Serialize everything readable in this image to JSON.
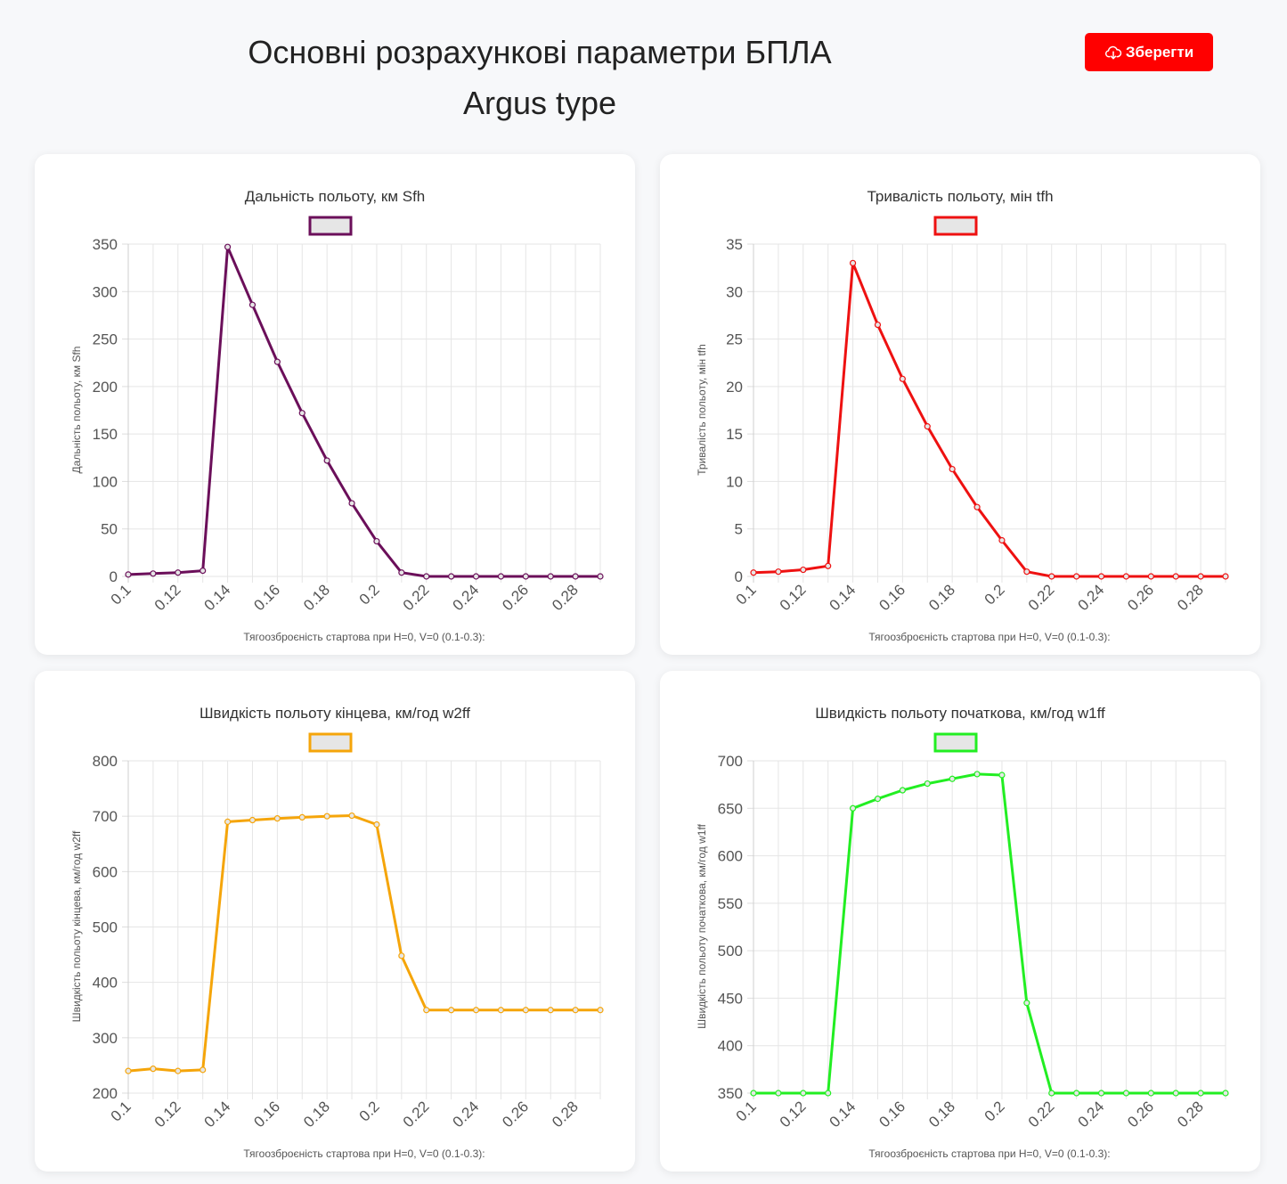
{
  "header": {
    "title_line1": "Основні розрахункові параметри БПЛА",
    "title_line2": "Argus type",
    "save_label": "Зберегти",
    "save_icon": "cloud-download-icon",
    "save_color": "#ff0000"
  },
  "chart_data": [
    {
      "type": "line",
      "title": "Дальність польоту, км Sfh",
      "xlabel": "Тягоозброєність стартова при H=0, V=0 (0.1-0.3):",
      "ylabel": "Дальність польоту, км Sfh",
      "color": "#6b0f5a",
      "legend": "top",
      "grid": true,
      "ylim": [
        0,
        350
      ],
      "yticks": [
        0,
        50,
        100,
        150,
        200,
        250,
        300,
        350
      ],
      "x": [
        0.1,
        0.11,
        0.12,
        0.13,
        0.14,
        0.15,
        0.16,
        0.17,
        0.18,
        0.19,
        0.2,
        0.21,
        0.22,
        0.23,
        0.24,
        0.25,
        0.26,
        0.27,
        0.28,
        0.29
      ],
      "xtick_labels": [
        "0.1",
        "0.12",
        "0.14",
        "0.16",
        "0.18",
        "0.2",
        "0.22",
        "0.24",
        "0.26",
        "0.28"
      ],
      "series": [
        {
          "values": [
            2,
            3,
            4,
            6,
            347,
            286,
            226,
            172,
            122,
            77,
            37,
            4,
            0,
            0,
            0,
            0,
            0,
            0,
            0,
            0
          ]
        }
      ]
    },
    {
      "type": "line",
      "title": "Тривалість польоту, мін tfh",
      "xlabel": "Тягоозброєність стартова при H=0, V=0 (0.1-0.3):",
      "ylabel": "Тривалість польоту, мін tfh",
      "color": "#ee1111",
      "legend": "top",
      "grid": true,
      "ylim": [
        0,
        35
      ],
      "yticks": [
        0,
        5,
        10,
        15,
        20,
        25,
        30,
        35
      ],
      "x": [
        0.1,
        0.11,
        0.12,
        0.13,
        0.14,
        0.15,
        0.16,
        0.17,
        0.18,
        0.19,
        0.2,
        0.21,
        0.22,
        0.23,
        0.24,
        0.25,
        0.26,
        0.27,
        0.28,
        0.29
      ],
      "xtick_labels": [
        "0.1",
        "0.12",
        "0.14",
        "0.16",
        "0.18",
        "0.2",
        "0.22",
        "0.24",
        "0.26",
        "0.28"
      ],
      "series": [
        {
          "values": [
            0.4,
            0.5,
            0.7,
            1.1,
            33.0,
            26.5,
            20.8,
            15.8,
            11.3,
            7.3,
            3.8,
            0.5,
            0,
            0,
            0,
            0,
            0,
            0,
            0,
            0
          ]
        }
      ]
    },
    {
      "type": "line",
      "title": "Швидкість польоту кінцева, км/год w2ff",
      "xlabel": "Тягоозброєність стартова при H=0, V=0 (0.1-0.3):",
      "ylabel": "Швидкість польоту кінцева, км/год w2ff",
      "color": "#f5a50a",
      "legend": "top",
      "grid": true,
      "ylim": [
        200,
        800
      ],
      "yticks": [
        200,
        300,
        400,
        500,
        600,
        700,
        800
      ],
      "x": [
        0.1,
        0.11,
        0.12,
        0.13,
        0.14,
        0.15,
        0.16,
        0.17,
        0.18,
        0.19,
        0.2,
        0.21,
        0.22,
        0.23,
        0.24,
        0.25,
        0.26,
        0.27,
        0.28,
        0.29
      ],
      "xtick_labels": [
        "0.1",
        "0.12",
        "0.14",
        "0.16",
        "0.18",
        "0.2",
        "0.22",
        "0.24",
        "0.26",
        "0.28"
      ],
      "series": [
        {
          "values": [
            240,
            244,
            240,
            242,
            690,
            693,
            696,
            698,
            700,
            701,
            685,
            448,
            350,
            350,
            350,
            350,
            350,
            350,
            350,
            350
          ]
        }
      ]
    },
    {
      "type": "line",
      "title": "Швидкість польоту початкова, км/год w1ff",
      "xlabel": "Тягоозброєність стартова при H=0, V=0 (0.1-0.3):",
      "ylabel": "Швидкість польоту початкова, км/год w1ff",
      "color": "#22ee22",
      "legend": "top",
      "grid": true,
      "ylim": [
        350,
        700
      ],
      "yticks": [
        350,
        400,
        450,
        500,
        550,
        600,
        650,
        700
      ],
      "x": [
        0.1,
        0.11,
        0.12,
        0.13,
        0.14,
        0.15,
        0.16,
        0.17,
        0.18,
        0.19,
        0.2,
        0.21,
        0.22,
        0.23,
        0.24,
        0.25,
        0.26,
        0.27,
        0.28,
        0.29
      ],
      "xtick_labels": [
        "0.1",
        "0.12",
        "0.14",
        "0.16",
        "0.18",
        "0.2",
        "0.22",
        "0.24",
        "0.26",
        "0.28"
      ],
      "series": [
        {
          "values": [
            350,
            350,
            350,
            350,
            650,
            660,
            669,
            676,
            681,
            686,
            685,
            445,
            350,
            350,
            350,
            350,
            350,
            350,
            350,
            350
          ]
        }
      ]
    }
  ]
}
